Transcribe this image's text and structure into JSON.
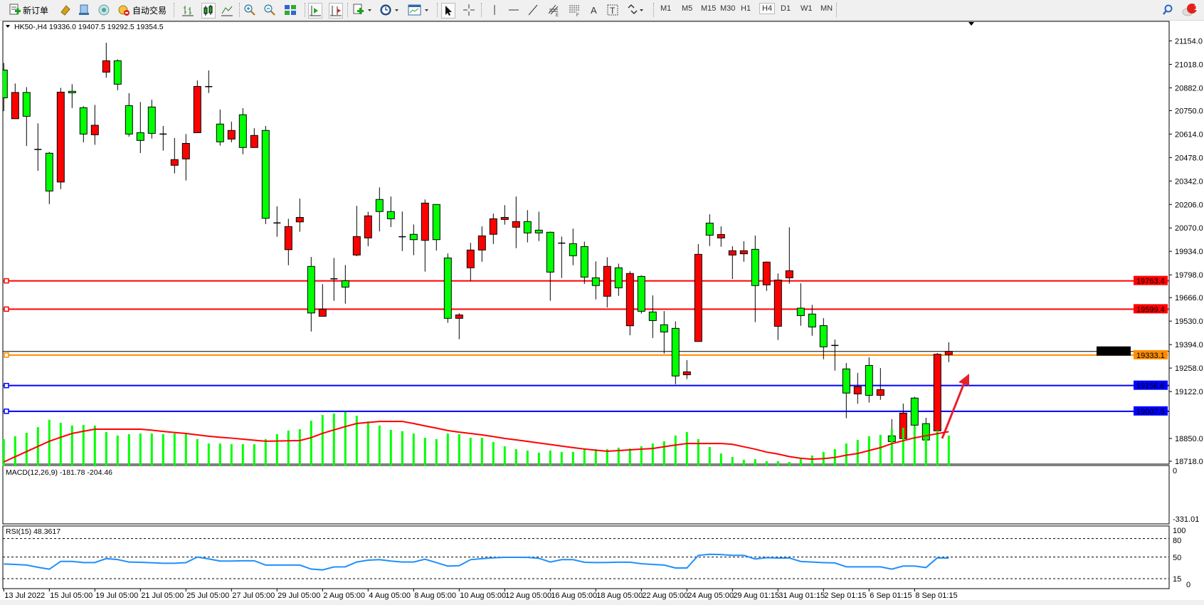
{
  "toolbar": {
    "new_order_label": "新订单",
    "auto_trade_label": "自动交易",
    "timeframes": [
      "M1",
      "M5",
      "M15",
      "M30",
      "H1",
      "H4",
      "D1",
      "W1",
      "MN"
    ],
    "selected_timeframe": "H4",
    "notification_count": "1",
    "icons": [
      "new-order-icon",
      "gold-icon",
      "history-icon",
      "signal-icon",
      "auto-trade-icon",
      "bar-chart-icon",
      "candlestick-icon",
      "line-chart-icon",
      "zoom-in-icon",
      "zoom-out-icon",
      "tile-windows-icon",
      "auto-scroll-icon",
      "chart-shift-icon",
      "indicators-icon",
      "periods-icon",
      "templates-icon",
      "cursor-icon",
      "crosshair-icon",
      "vertical-line-icon",
      "horizontal-line-icon",
      "trendline-icon",
      "fibonacci-icon",
      "fibo-fan-icon",
      "text-icon",
      "text-label-icon",
      "arrows-icon",
      "search-icon",
      "notification-icon"
    ]
  },
  "chart": {
    "header": "HK50-,H4  19336.0 19407.5 19292.5 19354.5",
    "colors": {
      "bull": "#ff0000",
      "bear": "#00ff00",
      "outline": "#000000",
      "macd_hist": "#00ff00",
      "macd_signal": "#ff0000",
      "rsi": "#1e90ff",
      "arrow": "#e8202a"
    },
    "price_ticks": [
      "21154.0",
      "21018.0",
      "20882.0",
      "20750.0",
      "20614.0",
      "20478.0",
      "20342.0",
      "20206.0",
      "20070.0",
      "19934.0",
      "19798.0",
      "19666.0",
      "19530.0",
      "19394.0",
      "19258.0",
      "19122.0",
      "18850.0",
      "18718.0"
    ],
    "levels": [
      {
        "price": 19763.4,
        "label": "19763.4",
        "color": "#ff0000"
      },
      {
        "price": 19599.4,
        "label": "19599.4",
        "color": "#ff0000"
      },
      {
        "price": 19333.1,
        "label": "19333.1",
        "color": "#ff8c00"
      },
      {
        "price": 19156.6,
        "label": "19156.6",
        "color": "#0000ff"
      },
      {
        "price": 19007.5,
        "label": "19007.5",
        "color": "#0000ff"
      }
    ],
    "current_price": {
      "price": 19354.5,
      "label": "19354.5"
    },
    "ohlc": [
      [
        20985,
        21026,
        20747,
        20824
      ],
      [
        20703,
        20907,
        20703,
        20855
      ],
      [
        20855,
        20886,
        20545,
        20717
      ],
      [
        20525,
        20676,
        20401,
        20525
      ],
      [
        20503,
        20511,
        20208,
        20284
      ],
      [
        20336,
        20882,
        20295,
        20857
      ],
      [
        20862,
        20903,
        20765,
        20853
      ],
      [
        20767,
        20775,
        20566,
        20614
      ],
      [
        20610,
        20783,
        20552,
        20665
      ],
      [
        20973,
        21143,
        20941,
        21039
      ],
      [
        21039,
        21047,
        20868,
        20903
      ],
      [
        20779,
        20851,
        20599,
        20614
      ],
      [
        20622,
        20800,
        20504,
        20577
      ],
      [
        20771,
        20813,
        20588,
        20618
      ],
      [
        20614,
        20661,
        20518,
        20614
      ],
      [
        20433,
        20591,
        20386,
        20466
      ],
      [
        20470,
        20614,
        20345,
        20560
      ],
      [
        20622,
        20925,
        20622,
        20890
      ],
      [
        20889,
        20983,
        20852,
        20889
      ],
      [
        20672,
        20756,
        20547,
        20569
      ],
      [
        20585,
        20686,
        20566,
        20635
      ],
      [
        20726,
        20764,
        20497,
        20536
      ],
      [
        20536,
        20648,
        20536,
        20606
      ],
      [
        20635,
        20661,
        20092,
        20126
      ],
      [
        20099,
        20195,
        20019,
        20099
      ],
      [
        19944,
        20123,
        19854,
        20078
      ],
      [
        20105,
        20240,
        20048,
        20131
      ],
      [
        19847,
        19902,
        19470,
        19577
      ],
      [
        19558,
        19744,
        19558,
        19599
      ],
      [
        19775,
        19896,
        19648,
        19775
      ],
      [
        19764,
        19855,
        19631,
        19727
      ],
      [
        19913,
        20198,
        19906,
        20020
      ],
      [
        20012,
        20164,
        19964,
        20140
      ],
      [
        20235,
        20305,
        20050,
        20165
      ],
      [
        20165,
        20252,
        20075,
        20123
      ],
      [
        20019,
        20165,
        19936,
        20019
      ],
      [
        20033,
        20090,
        19912,
        20002
      ],
      [
        19998,
        20235,
        19817,
        20214
      ],
      [
        20206,
        20206,
        19939,
        20002
      ],
      [
        19896,
        19922,
        19520,
        19546
      ],
      [
        19546,
        19576,
        19425,
        19566
      ],
      [
        19839,
        19984,
        19763,
        19942
      ],
      [
        19942,
        20079,
        19874,
        20024
      ],
      [
        20033,
        20153,
        19977,
        20123
      ],
      [
        20119,
        20202,
        20089,
        20131
      ],
      [
        20074,
        20252,
        19953,
        20107
      ],
      [
        20107,
        20173,
        19986,
        20041
      ],
      [
        20057,
        20164,
        19994,
        20041
      ],
      [
        20045,
        20049,
        19648,
        19814
      ],
      [
        19982,
        20020,
        19780,
        19982
      ],
      [
        19979,
        20066,
        19854,
        19909
      ],
      [
        19962,
        19991,
        19746,
        19785
      ],
      [
        19781,
        19876,
        19656,
        19736
      ],
      [
        19674,
        19900,
        19609,
        19847
      ],
      [
        19839,
        19863,
        19676,
        19723
      ],
      [
        19503,
        19819,
        19448,
        19806
      ],
      [
        19789,
        19795,
        19573,
        19587
      ],
      [
        19583,
        19679,
        19432,
        19533
      ],
      [
        19509,
        19588,
        19342,
        19467
      ],
      [
        19488,
        19529,
        19164,
        19212
      ],
      [
        19219,
        19304,
        19194,
        19236
      ],
      [
        19412,
        19976,
        19412,
        19917
      ],
      [
        20098,
        20149,
        19965,
        20028
      ],
      [
        20012,
        20079,
        19961,
        20032
      ],
      [
        19913,
        19964,
        19774,
        19938
      ],
      [
        19920,
        19993,
        19874,
        19938
      ],
      [
        19946,
        20026,
        19524,
        19736
      ],
      [
        19740,
        19876,
        19705,
        19872
      ],
      [
        19500,
        19806,
        19421,
        19768
      ],
      [
        19781,
        20074,
        19747,
        19822
      ],
      [
        19605,
        19749,
        19503,
        19562
      ],
      [
        19571,
        19624,
        19445,
        19496
      ],
      [
        19504,
        19547,
        19309,
        19381
      ],
      [
        19389,
        19423,
        19243,
        19389
      ],
      [
        19253,
        19287,
        18967,
        19113
      ],
      [
        19108,
        19230,
        19051,
        19150
      ],
      [
        19273,
        19320,
        19058,
        19100
      ],
      [
        19100,
        19258,
        19074,
        19133
      ],
      [
        18865,
        18962,
        18786,
        18832
      ],
      [
        18849,
        19052,
        18769,
        18997
      ],
      [
        19084,
        19092,
        18876,
        18927
      ],
      [
        18936,
        18970,
        18765,
        18841
      ],
      [
        18894,
        19345,
        18864,
        19338
      ],
      [
        19336,
        19407.5,
        19292.5,
        19354.5
      ]
    ],
    "date_labels": [
      "13 Jul 2022",
      "15 Jul 05:00",
      "19 Jul 05:00",
      "21 Jul 05:00",
      "25 Jul 05:00",
      "27 Jul 05:00",
      "29 Jul 05:00",
      "2 Aug 05:00",
      "4 Aug 05:00",
      "8 Aug 05:00",
      "10 Aug 05:00",
      "12 Aug 05:00",
      "16 Aug 05:00",
      "18 Aug 05:00",
      "22 Aug 05:00",
      "24 Aug 05:00",
      "29 Aug 01:15",
      "31 Aug 01:15",
      "2 Sep 01:15",
      "6 Sep 01:15",
      "8 Sep 01:15"
    ]
  },
  "macd": {
    "header": "MACD(12,26,9) -181.78 -204.46",
    "ticks": [
      "0",
      "-331.01"
    ],
    "range": [
      -331.01,
      0
    ],
    "main": [
      -161,
      -178,
      -198,
      -231,
      -273,
      -256,
      -240,
      -244,
      -240,
      -202,
      -182,
      -190,
      -194,
      -194,
      -190,
      -194,
      -190,
      -161,
      -136,
      -136,
      -132,
      -132,
      -132,
      -161,
      -190,
      -211,
      -219,
      -268,
      -301,
      -310,
      -318,
      -297,
      -264,
      -240,
      -215,
      -207,
      -194,
      -169,
      -161,
      -194,
      -190,
      -169,
      -169,
      -145,
      -120,
      -103,
      -95,
      -83,
      -95,
      -87,
      -87,
      -103,
      -103,
      -103,
      -112,
      -107,
      -120,
      -136,
      -149,
      -182,
      -202,
      -161,
      -116,
      -78,
      -58,
      -41,
      -45,
      -33,
      -33,
      -29,
      -45,
      -66,
      -87,
      -103,
      -136,
      -157,
      -178,
      -186,
      -219,
      -227,
      -235,
      -248,
      -211,
      -181.78
    ],
    "signal": [
      -29,
      -59,
      -89,
      -119,
      -149,
      -172,
      -194,
      -207,
      -219,
      -219,
      -219,
      -219,
      -219,
      -213,
      -206,
      -200,
      -194,
      -186,
      -178,
      -172,
      -167,
      -161,
      -155,
      -149,
      -150,
      -152,
      -153,
      -170,
      -195,
      -215,
      -234,
      -252,
      -258,
      -264,
      -264,
      -264,
      -252,
      -238,
      -225,
      -211,
      -202,
      -194,
      -186,
      -176,
      -165,
      -157,
      -148,
      -139,
      -130,
      -121,
      -112,
      -104,
      -97,
      -91,
      -95,
      -99,
      -103,
      -107,
      -117,
      -127,
      -136,
      -136,
      -136,
      -136,
      -131,
      -117,
      -103,
      -86,
      -75,
      -60,
      -50,
      -45,
      -48,
      -55,
      -68,
      -78,
      -95,
      -112,
      -135,
      -152,
      -169,
      -181,
      -193,
      -204.46
    ]
  },
  "rsi": {
    "header": "RSI(15) 48.3617",
    "ticks": [
      "100",
      "80",
      "50",
      "15",
      "0"
    ],
    "levels": [
      80,
      50,
      15
    ],
    "values": [
      38.8,
      38,
      37,
      33.5,
      30.4,
      43,
      43,
      41.1,
      41.1,
      47.5,
      46,
      41.9,
      41.5,
      40.8,
      40,
      40,
      41,
      50,
      47,
      43.5,
      43.5,
      44,
      44,
      37,
      37,
      37,
      37,
      30.5,
      29.2,
      34,
      34.2,
      42,
      45,
      45.8,
      43.5,
      42,
      42,
      46.5,
      41,
      35.4,
      36,
      45.8,
      47.5,
      48.8,
      49.6,
      49.6,
      49.5,
      48,
      42,
      45.8,
      45.8,
      41.5,
      41.1,
      41.3,
      41.6,
      41.6,
      39.2,
      38,
      37,
      32.3,
      32.3,
      52.7,
      54.5,
      54,
      52.7,
      52.7,
      46.9,
      49,
      48.5,
      48.5,
      42.8,
      41.9,
      41,
      40.5,
      34.2,
      34.2,
      34.2,
      34.2,
      30.4,
      35.4,
      35.4,
      33,
      48.8,
      48.36
    ]
  }
}
